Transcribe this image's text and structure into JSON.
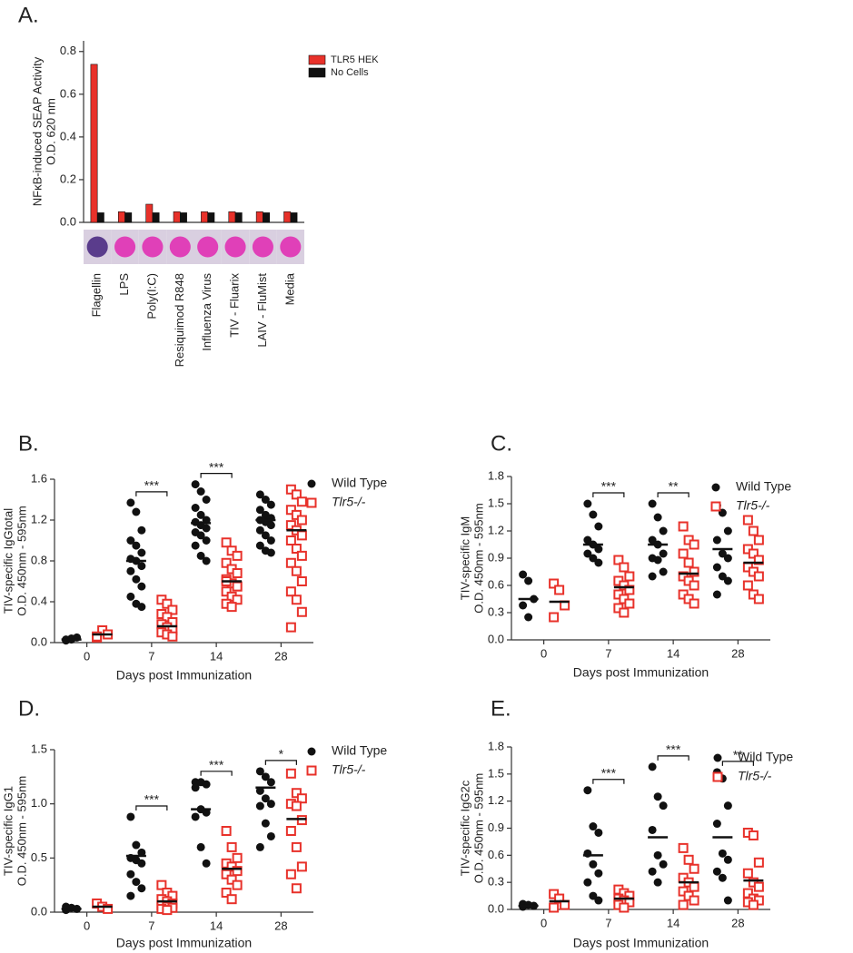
{
  "chart_data": [
    {
      "type": "bar",
      "label": "A.",
      "ylabel": [
        "NFκB-induced SEAP Activity",
        "O.D. 620 nm"
      ],
      "categories": [
        "Flagellin",
        "LPS",
        "Poly(I:C)",
        "Resiquimod R848",
        "Influenza Virus",
        "TIV - Fluarix",
        "LAIV - FluMist",
        "Media"
      ],
      "series": [
        {
          "name": "TLR5 HEK",
          "color": "#e8312a",
          "values": [
            0.74,
            0.05,
            0.085,
            0.05,
            0.05,
            0.05,
            0.05,
            0.05
          ]
        },
        {
          "name": "No Cells",
          "color": "#111111",
          "values": [
            0.045,
            0.045,
            0.045,
            0.045,
            0.045,
            0.045,
            0.045,
            0.045
          ]
        }
      ],
      "ylim": [
        0,
        0.85
      ],
      "yticks": [
        {
          "value": 0,
          "label": "0.0"
        },
        0.2,
        0.4,
        0.6,
        0.8
      ]
    },
    {
      "type": "dotplot",
      "label": "B.",
      "ylabel": [
        "TIV-specific IgGtotal",
        "O.D. 450nm - 595nm"
      ],
      "xlabel": "Days post Immunization",
      "categories": [
        "0",
        "7",
        "14",
        "28"
      ],
      "series": [
        {
          "name": "Wild Type",
          "color": "#111111",
          "marker": "circle",
          "values": [
            [
              0.03,
              0.04,
              0.05,
              0.02,
              0.03
            ],
            [
              1.37,
              1.28,
              1.1,
              1.0,
              0.95,
              0.88,
              0.82,
              0.8,
              0.75,
              0.7,
              0.62,
              0.55,
              0.45,
              0.38,
              0.35
            ],
            [
              1.55,
              1.48,
              1.4,
              1.32,
              1.25,
              1.2,
              1.18,
              1.15,
              1.12,
              1.08,
              1.05,
              1.0,
              0.95,
              0.85,
              0.8
            ],
            [
              1.45,
              1.4,
              1.35,
              1.3,
              1.25,
              1.22,
              1.2,
              1.18,
              1.15,
              1.1,
              1.05,
              1.0,
              0.95,
              0.9,
              0.88
            ]
          ],
          "means": [
            0.03,
            0.8,
            1.17,
            1.2
          ]
        },
        {
          "name": "Tlr5-/-",
          "color": "#e8312a",
          "marker": "square",
          "values": [
            [
              0.05,
              0.12,
              0.08,
              0.06
            ],
            [
              0.42,
              0.38,
              0.32,
              0.28,
              0.25,
              0.2,
              0.18,
              0.15,
              0.12,
              0.1,
              0.08,
              0.06
            ],
            [
              0.98,
              0.9,
              0.85,
              0.78,
              0.72,
              0.68,
              0.62,
              0.58,
              0.55,
              0.5,
              0.45,
              0.42,
              0.38,
              0.35,
              0.55,
              0.6
            ],
            [
              1.5,
              1.45,
              1.38,
              1.3,
              1.25,
              1.2,
              1.15,
              1.1,
              1.05,
              1.0,
              0.92,
              0.85,
              0.78,
              0.7,
              0.6,
              0.5,
              0.42,
              0.3,
              0.15
            ]
          ],
          "means": [
            0.08,
            0.16,
            0.6,
            1.1
          ]
        }
      ],
      "significance": [
        null,
        "***",
        "***",
        null
      ],
      "ylim": [
        0,
        1.6
      ],
      "yticks": [
        {
          "value": 0,
          "label": "0.0"
        },
        0.4,
        0.8,
        1.2,
        1.6
      ]
    },
    {
      "type": "dotplot",
      "label": "C.",
      "ylabel": [
        "TIV-specific IgM",
        "O.D. 450nm - 595nm"
      ],
      "xlabel": "Days post Immunization",
      "categories": [
        "0",
        "7",
        "14",
        "28"
      ],
      "series": [
        {
          "name": "Wild Type",
          "color": "#111111",
          "marker": "circle",
          "values": [
            [
              0.72,
              0.65,
              0.45,
              0.38,
              0.25
            ],
            [
              1.5,
              1.38,
              1.25,
              1.1,
              1.05,
              1.0,
              0.95,
              0.9,
              0.85
            ],
            [
              1.5,
              1.35,
              1.2,
              1.1,
              1.05,
              0.95,
              0.9,
              0.88,
              0.75,
              0.7
            ],
            [
              1.48,
              1.4,
              1.2,
              1.1,
              0.95,
              0.9,
              0.8,
              0.7,
              0.65,
              0.5
            ]
          ],
          "means": [
            0.45,
            1.05,
            1.05,
            1.0
          ]
        },
        {
          "name": "Tlr5-/-",
          "color": "#e8312a",
          "marker": "square",
          "values": [
            [
              0.62,
              0.55,
              0.38,
              0.25
            ],
            [
              0.88,
              0.8,
              0.7,
              0.65,
              0.6,
              0.55,
              0.5,
              0.45,
              0.4,
              0.35,
              0.3
            ],
            [
              1.25,
              1.1,
              1.05,
              0.95,
              0.85,
              0.75,
              0.7,
              0.65,
              0.6,
              0.5,
              0.45,
              0.4
            ],
            [
              1.32,
              1.2,
              1.1,
              1.0,
              0.95,
              0.88,
              0.8,
              0.75,
              0.7,
              0.6,
              0.5,
              0.45
            ]
          ],
          "means": [
            0.42,
            0.58,
            0.73,
            0.85
          ]
        }
      ],
      "significance": [
        null,
        "***",
        "**",
        null
      ],
      "ylim": [
        0,
        1.8
      ],
      "yticks": [
        {
          "value": 0,
          "label": "0.0"
        },
        0.3,
        0.6,
        0.9,
        1.2,
        1.5,
        1.8
      ]
    },
    {
      "type": "dotplot",
      "label": "D.",
      "ylabel": [
        "TIV-specific IgG1",
        "O.D. 450nm - 595nm"
      ],
      "xlabel": "Days post Immunization",
      "categories": [
        "0",
        "7",
        "14",
        "28"
      ],
      "series": [
        {
          "name": "Wild Type",
          "color": "#111111",
          "marker": "circle",
          "values": [
            [
              0.05,
              0.04,
              0.03,
              0.02
            ],
            [
              0.88,
              0.62,
              0.55,
              0.5,
              0.48,
              0.45,
              0.35,
              0.28,
              0.22,
              0.15
            ],
            [
              1.2,
              1.2,
              1.18,
              1.15,
              0.95,
              0.92,
              0.88,
              0.6,
              0.45
            ],
            [
              1.3,
              1.25,
              1.2,
              1.12,
              1.05,
              1.0,
              0.98,
              0.82,
              0.7,
              0.6
            ]
          ],
          "means": [
            0.03,
            0.52,
            0.95,
            1.15
          ]
        },
        {
          "name": "Tlr5-/-",
          "color": "#e8312a",
          "marker": "square",
          "values": [
            [
              0.08,
              0.05,
              0.03
            ],
            [
              0.25,
              0.18,
              0.15,
              0.12,
              0.1,
              0.08,
              0.06,
              0.05,
              0.04,
              0.03,
              0.02
            ],
            [
              0.75,
              0.6,
              0.5,
              0.45,
              0.42,
              0.38,
              0.35,
              0.3,
              0.25,
              0.18,
              0.12
            ],
            [
              1.28,
              1.1,
              1.05,
              1.0,
              0.98,
              0.85,
              0.75,
              0.6,
              0.42,
              0.35,
              0.22
            ]
          ],
          "means": [
            0.05,
            0.1,
            0.4,
            0.86
          ]
        }
      ],
      "significance": [
        null,
        "***",
        "***",
        "*"
      ],
      "ylim": [
        0,
        1.5
      ],
      "yticks": [
        {
          "value": 0,
          "label": "0.0"
        },
        0.5,
        {
          "value": 1,
          "label": "1.0"
        },
        1.5
      ]
    },
    {
      "type": "dotplot",
      "label": "E.",
      "ylabel": [
        "TIV-specific IgG2c",
        "O.D. 450nm - 595nm"
      ],
      "xlabel": "Days post Immunization",
      "categories": [
        "0",
        "7",
        "14",
        "28"
      ],
      "series": [
        {
          "name": "Wild Type",
          "color": "#111111",
          "marker": "circle",
          "values": [
            [
              0.06,
              0.05,
              0.04,
              0.03
            ],
            [
              1.32,
              0.92,
              0.85,
              0.62,
              0.5,
              0.4,
              0.3,
              0.15,
              0.1
            ],
            [
              1.58,
              1.25,
              1.15,
              0.88,
              0.6,
              0.5,
              0.42,
              0.3
            ],
            [
              1.52,
              1.45,
              1.15,
              0.95,
              0.62,
              0.55,
              0.42,
              0.35,
              0.1
            ]
          ],
          "means": [
            0.04,
            0.6,
            0.8,
            0.8
          ]
        },
        {
          "name": "Tlr5-/-",
          "color": "#e8312a",
          "marker": "square",
          "values": [
            [
              0.17,
              0.12,
              0.05,
              0.02
            ],
            [
              0.22,
              0.18,
              0.15,
              0.12,
              0.1,
              0.08,
              0.05,
              0.02
            ],
            [
              0.68,
              0.55,
              0.45,
              0.35,
              0.3,
              0.25,
              0.2,
              0.15,
              0.1,
              0.05
            ],
            [
              0.85,
              0.82,
              0.52,
              0.4,
              0.3,
              0.25,
              0.18,
              0.12,
              0.1,
              0.08,
              0.05
            ]
          ],
          "means": [
            0.09,
            0.12,
            0.3,
            0.32
          ]
        }
      ],
      "significance": [
        null,
        "***",
        "***",
        "**"
      ],
      "ylim": [
        0,
        1.8
      ],
      "yticks": [
        {
          "value": 0,
          "label": "0.0"
        },
        0.3,
        0.6,
        0.9,
        1.2,
        1.5,
        1.8
      ]
    }
  ]
}
